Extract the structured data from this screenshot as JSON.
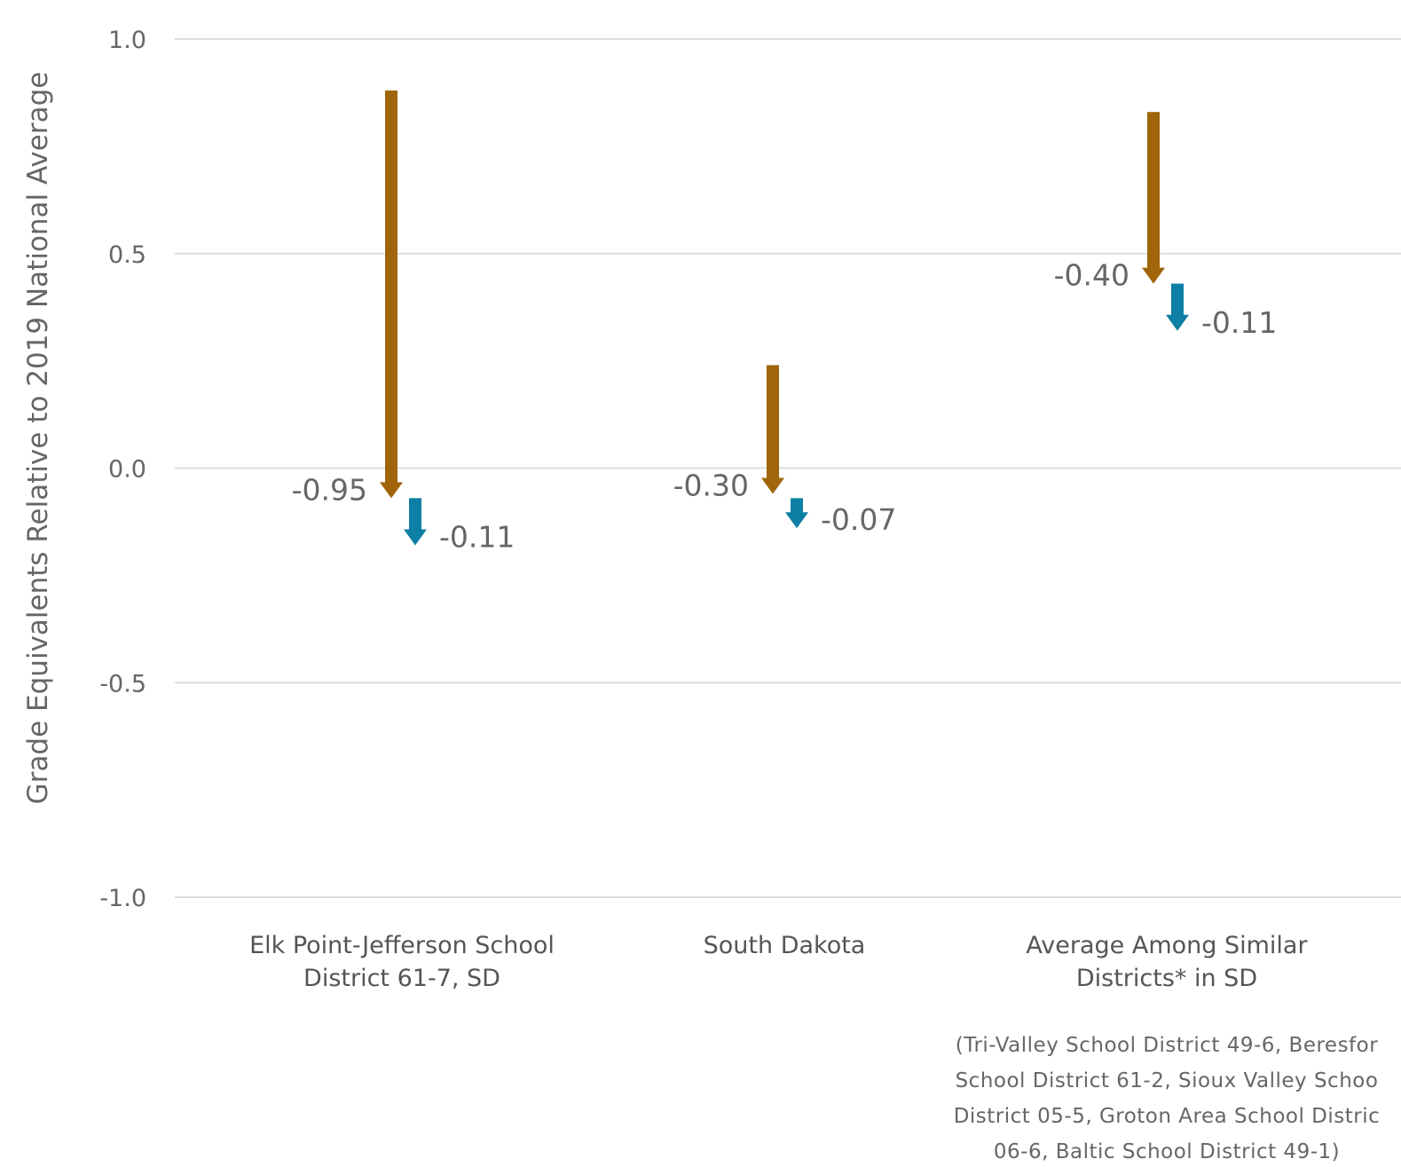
{
  "chart_data": {
    "type": "arrow",
    "ylabel": "Grade Equivalents Relative to 2019 National Average",
    "ylim": [
      -1.0,
      1.0
    ],
    "yticks": [
      1.0,
      0.5,
      0.0,
      -0.5,
      -1.0
    ],
    "ytick_labels": [
      "1.0",
      "0.5",
      "0.0",
      "-0.5",
      "-1.0"
    ],
    "grid": true,
    "colors": {
      "primary_arrow": "#a0650a",
      "secondary_arrow": "#0e7fa4",
      "gridline": "#dddddd",
      "text": "#666666"
    },
    "categories": [
      {
        "label_lines": [
          "Elk Point-Jefferson School",
          "District 61-7, SD"
        ],
        "arrows": [
          {
            "start": 0.88,
            "end": -0.07,
            "change_label": "-0.95"
          },
          {
            "start": -0.07,
            "end": -0.18,
            "change_label": "-0.11"
          }
        ]
      },
      {
        "label_lines": [
          "South Dakota"
        ],
        "arrows": [
          {
            "start": 0.24,
            "end": -0.06,
            "change_label": "-0.30"
          },
          {
            "start": -0.07,
            "end": -0.14,
            "change_label": "-0.07"
          }
        ]
      },
      {
        "label_lines": [
          "Average Among Similar",
          "Districts* in SD"
        ],
        "note_lines": [
          "(Tri-Valley School District 49-6, Beresfor",
          "School District 61-2, Sioux Valley Schoo",
          "District 05-5, Groton Area School Distric",
          "06-6, Baltic School District 49-1)"
        ],
        "arrows": [
          {
            "start": 0.83,
            "end": 0.43,
            "change_label": "-0.40"
          },
          {
            "start": 0.43,
            "end": 0.32,
            "change_label": "-0.11"
          }
        ]
      }
    ]
  }
}
